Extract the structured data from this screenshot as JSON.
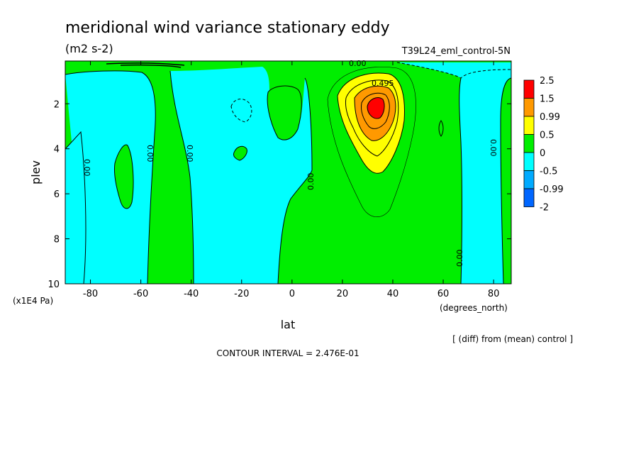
{
  "chart_data": {
    "type": "heatmap",
    "title": "meridional wind variance  stationary eddy",
    "units": "(m2 s-2)",
    "run_label": "T39L24_eml_control-5N",
    "xlabel": "lat",
    "x_units": "(degrees_north)",
    "ylabel": "plev",
    "y_units": "(x1E4 Pa)",
    "xlim": [
      -90,
      87
    ],
    "ylim": [
      10,
      0.1
    ],
    "x_ticks": [
      -80,
      -60,
      -40,
      -20,
      0,
      20,
      40,
      60,
      80
    ],
    "y_ticks": [
      2,
      4,
      6,
      8,
      10
    ],
    "legend": {
      "placement": "right",
      "levels": [
        "2.5",
        "1.5",
        "0.99",
        "0.5",
        "0",
        "-0.5",
        "-0.99",
        "-2"
      ],
      "colors": [
        "#ff0000",
        "#ff9900",
        "#ffff00",
        "#00ee00",
        "#00ffff",
        "#00aaff",
        "#0066ff",
        "#ffffff"
      ]
    },
    "contour_labels": [
      "0.00",
      "0.495"
    ],
    "anomaly_peak": {
      "lat": 34,
      "plev": 2.0,
      "value": 2.5
    },
    "footer_note": "[ (diff) from (mean) control ]",
    "contour_interval": "CONTOUR INTERVAL = 2.476E-01"
  }
}
